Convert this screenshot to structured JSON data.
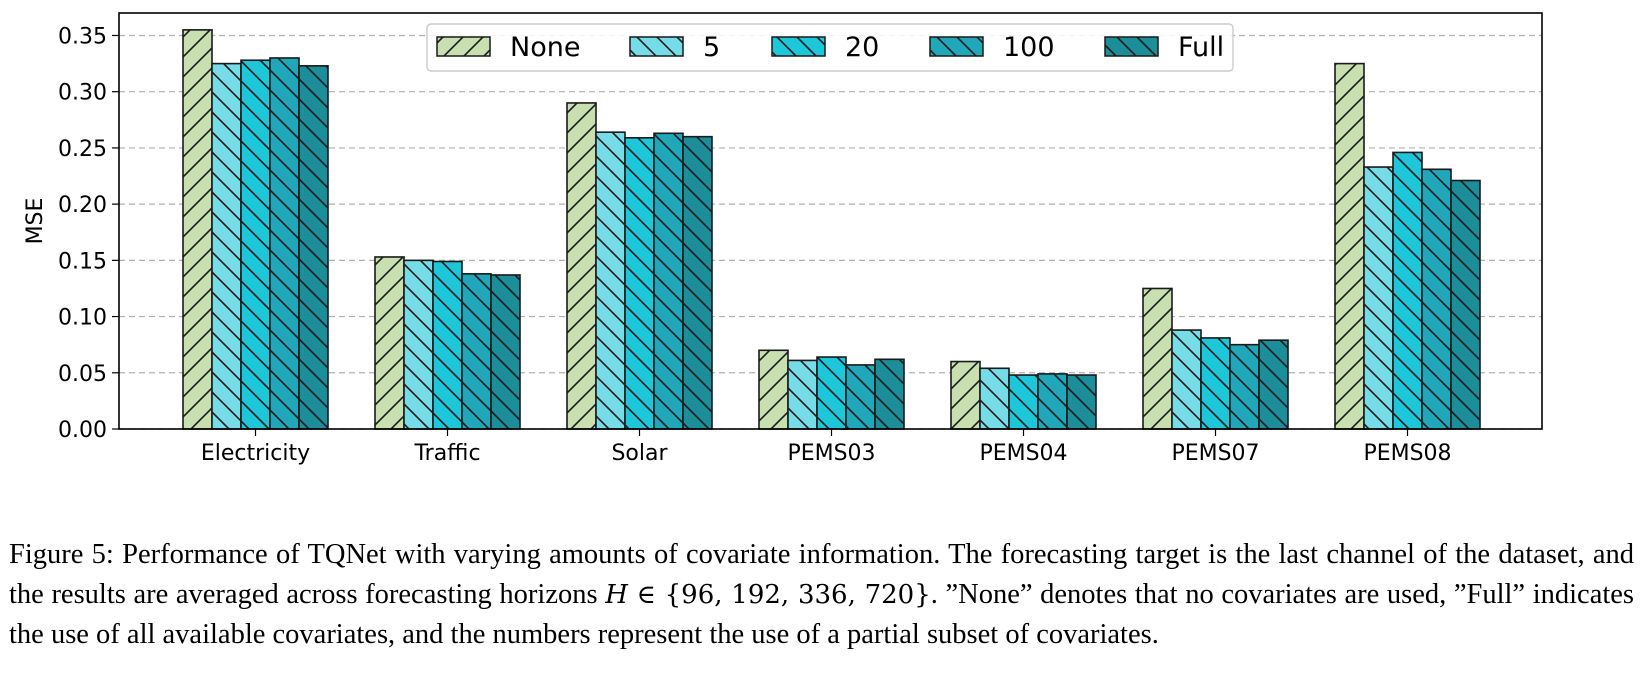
{
  "chart_data": {
    "type": "bar",
    "title": "",
    "xlabel": "",
    "ylabel": "MSE",
    "ylim": [
      0,
      0.37
    ],
    "yticks": [
      "0.00",
      "0.05",
      "0.10",
      "0.15",
      "0.20",
      "0.25",
      "0.30",
      "0.35"
    ],
    "grid": "horizontal dashed",
    "legend_position": "top-center",
    "categories": [
      "Electricity",
      "Traffic",
      "Solar",
      "PEMS03",
      "PEMS04",
      "PEMS07",
      "PEMS08"
    ],
    "series": [
      {
        "name": "None",
        "color": "#c8e0b0",
        "hatch": "forward",
        "values": [
          0.355,
          0.153,
          0.29,
          0.07,
          0.06,
          0.125,
          0.325
        ]
      },
      {
        "name": "5",
        "color": "#76dde8",
        "hatch": "back",
        "values": [
          0.325,
          0.15,
          0.264,
          0.061,
          0.054,
          0.088,
          0.233
        ]
      },
      {
        "name": "20",
        "color": "#1ec6da",
        "hatch": "back",
        "values": [
          0.328,
          0.149,
          0.259,
          0.064,
          0.048,
          0.081,
          0.246
        ]
      },
      {
        "name": "100",
        "color": "#20a7b9",
        "hatch": "back",
        "values": [
          0.33,
          0.138,
          0.263,
          0.057,
          0.049,
          0.075,
          0.231
        ]
      },
      {
        "name": "Full",
        "color": "#1b8e9a",
        "hatch": "back",
        "values": [
          0.323,
          0.137,
          0.26,
          0.062,
          0.048,
          0.079,
          0.221
        ]
      }
    ]
  },
  "caption": {
    "prefix": "Figure 5: Performance of TQNet with varying amounts of covariate information. The forecasting target is the last channel of the dataset, and the results are averaged across forecasting horizons ",
    "math_var": "H",
    "math_rest": " ∈ {96, 192, 336, 720}",
    "suffix": ". ”None” denotes that no covariates are used, ”Full” indicates the use of all available covariates, and the numbers represent the use of a partial subset of covariates."
  }
}
